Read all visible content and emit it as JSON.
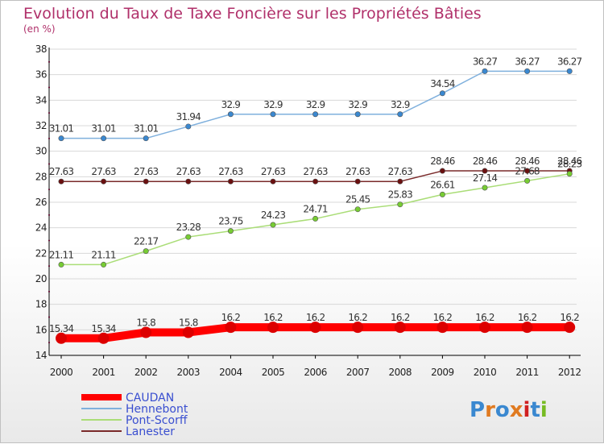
{
  "colors": {
    "title": "#b0306a",
    "grid": "#d8d8d8",
    "axis": "#000000",
    "tick_mark": "#d0206a",
    "legend_text": "#3a4fd0"
  },
  "chart_data": {
    "type": "line",
    "title": "Evolution du Taux de Taxe Foncière sur les Propriétés Bâties",
    "subtitle": "(en %)",
    "xlabel": "",
    "ylabel": "",
    "categories": [
      "2000",
      "2001",
      "2002",
      "2003",
      "2004",
      "2005",
      "2006",
      "2007",
      "2008",
      "2009",
      "2010",
      "2011",
      "2012"
    ],
    "ylim": [
      14,
      38
    ],
    "yticks": [
      14,
      16,
      18,
      20,
      22,
      24,
      26,
      28,
      30,
      32,
      34,
      36,
      38
    ],
    "grid": "horizontal",
    "legend_position": "bottom-left",
    "series": [
      {
        "name": "CAUDAN",
        "color": "#ff0000",
        "marker_color": "#dd0000",
        "thick": true,
        "values": [
          15.34,
          15.34,
          15.8,
          15.8,
          16.2,
          16.2,
          16.2,
          16.2,
          16.2,
          16.2,
          16.2,
          16.2,
          16.2
        ],
        "labels": [
          "15.34",
          "15.34",
          "15.8",
          "15.8",
          "16.2",
          "16.2",
          "16.2",
          "16.2",
          "16.2",
          "16.2",
          "16.2",
          "16.2",
          "16.2"
        ]
      },
      {
        "name": "Hennebont",
        "color": "#7fb0dd",
        "marker_color": "#3a88d0",
        "thick": false,
        "values": [
          31.01,
          31.01,
          31.01,
          31.94,
          32.9,
          32.9,
          32.9,
          32.9,
          32.9,
          34.54,
          36.27,
          36.27,
          36.27
        ],
        "labels": [
          "31.01",
          "31.01",
          "31.01",
          "31.94",
          "32.9",
          "32.9",
          "32.9",
          "32.9",
          "32.9",
          "34.54",
          "36.27",
          "36.27",
          "36.27"
        ]
      },
      {
        "name": "Pont-Scorff",
        "color": "#aadd77",
        "marker_color": "#77cc33",
        "thick": false,
        "values": [
          21.11,
          21.11,
          22.17,
          23.28,
          23.75,
          24.23,
          24.71,
          25.45,
          25.83,
          26.61,
          27.14,
          27.68,
          28.23
        ],
        "labels": [
          "21.11",
          "21.11",
          "22.17",
          "23.28",
          "23.75",
          "24.23",
          "24.71",
          "25.45",
          "25.83",
          "26.61",
          "27.14",
          "27.68",
          "28.23"
        ]
      },
      {
        "name": "Lanester",
        "color": "#7a2a2a",
        "marker_color": "#6a1010",
        "thick": false,
        "values": [
          27.63,
          27.63,
          27.63,
          27.63,
          27.63,
          27.63,
          27.63,
          27.63,
          27.63,
          28.46,
          28.46,
          28.46,
          28.46
        ],
        "labels": [
          "27.63",
          "27.63",
          "27.63",
          "27.63",
          "27.63",
          "27.63",
          "27.63",
          "27.63",
          "27.63",
          "28.46",
          "28.46",
          "28.46",
          "28.46"
        ]
      }
    ]
  },
  "logo": {
    "text": "Proxiti",
    "letter_colors": [
      "#3a88d0",
      "#e07a20",
      "#3a88d0",
      "#e07a20",
      "#d02020",
      "#3a88d0",
      "#77bb22"
    ]
  }
}
